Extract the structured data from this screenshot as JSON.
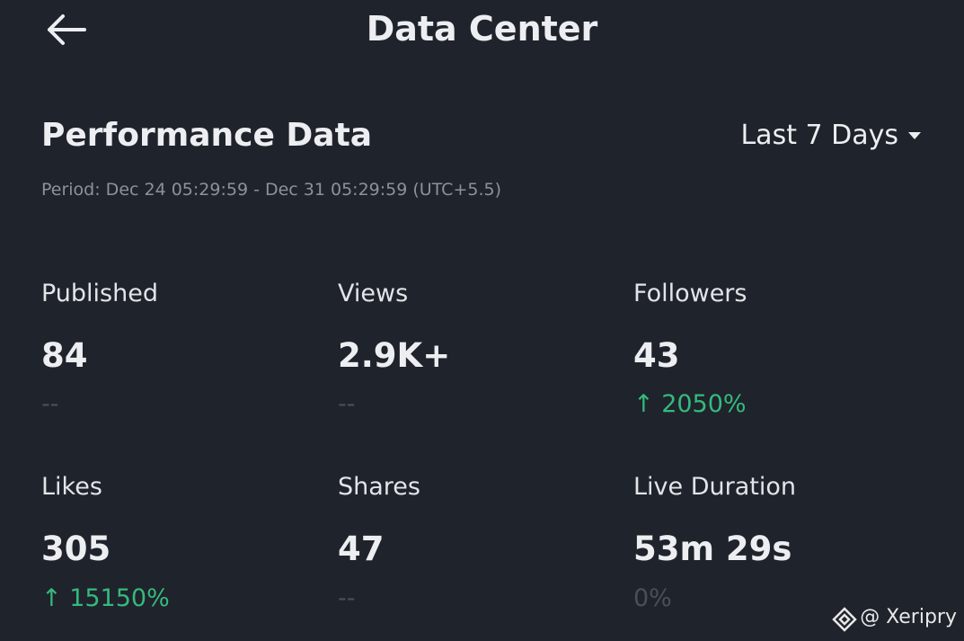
{
  "header": {
    "title": "Data Center"
  },
  "section": {
    "title": "Performance Data",
    "range": "Last 7 Days",
    "period": "Period: Dec 24 05:29:59 - Dec 31 05:29:59 (UTC+5.5)"
  },
  "metrics": [
    {
      "label": "Published",
      "value": "84",
      "change": "--"
    },
    {
      "label": "Views",
      "value": "2.9K+",
      "change": "--"
    },
    {
      "label": "Followers",
      "value": "43",
      "change": "↑ 2050%"
    },
    {
      "label": "Likes",
      "value": "305",
      "change": "↑ 15150%"
    },
    {
      "label": "Shares",
      "value": "47",
      "change": "--"
    },
    {
      "label": "Live Duration",
      "value": "53m 29s",
      "change": "0%"
    }
  ],
  "watermark": "@ Xeripry"
}
